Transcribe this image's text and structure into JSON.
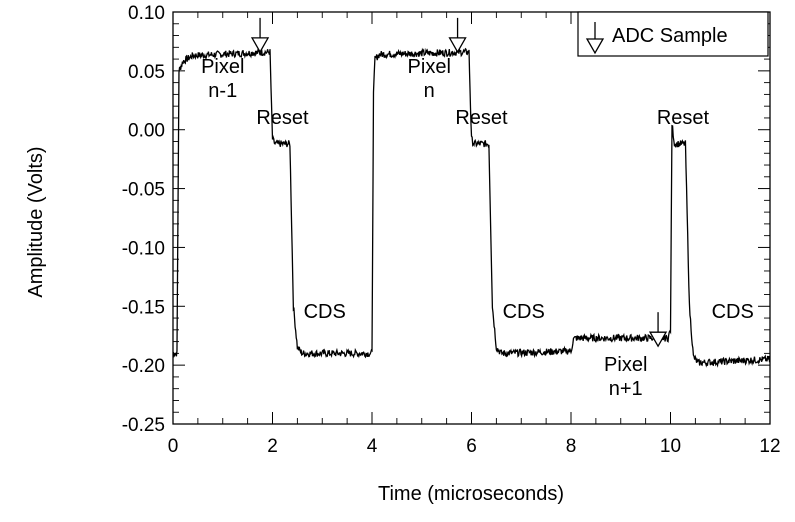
{
  "chart_data": {
    "type": "line",
    "title": "",
    "xlabel": "Time (microseconds)",
    "ylabel": "Amplitude (Volts)",
    "xlim": [
      0,
      12
    ],
    "ylim": [
      -0.25,
      0.1
    ],
    "x_ticks": [
      0,
      2,
      4,
      6,
      8,
      10,
      12
    ],
    "x_tick_labels": [
      "0",
      "2",
      "4",
      "6",
      "8",
      "10",
      "12"
    ],
    "y_ticks": [
      0.1,
      0.05,
      0.0,
      -0.05,
      -0.1,
      -0.15,
      -0.2,
      -0.25
    ],
    "y_tick_labels": [
      "0.10",
      "0.05",
      "0.00",
      "-0.05",
      "-0.10",
      "-0.15",
      "-0.20",
      "-0.25"
    ],
    "grid": false,
    "legend": {
      "position": "top-right",
      "label": "ADC Sample",
      "marker": "down-arrow-icon"
    },
    "series": [
      {
        "color": "#000000",
        "x": [
          0.0,
          0.08,
          0.12,
          0.2,
          0.4,
          1.95,
          1.98,
          2.0,
          2.05,
          2.35,
          2.42,
          2.5,
          2.6,
          4.0,
          4.03,
          4.06,
          4.15,
          5.95,
          5.98,
          6.0,
          6.05,
          6.35,
          6.42,
          6.5,
          6.6,
          8.0,
          8.05,
          8.1,
          9.95,
          10.0,
          10.03,
          10.08,
          10.3,
          10.38,
          10.46,
          10.55,
          12.0
        ],
        "y": [
          -0.19,
          -0.19,
          0.05,
          0.058,
          0.063,
          0.066,
          0.02,
          -0.008,
          -0.012,
          -0.012,
          -0.15,
          -0.185,
          -0.19,
          -0.19,
          0.03,
          0.06,
          0.064,
          0.066,
          0.02,
          -0.008,
          -0.012,
          -0.012,
          -0.15,
          -0.185,
          -0.19,
          -0.188,
          -0.178,
          -0.177,
          -0.177,
          -0.17,
          0.005,
          -0.012,
          -0.012,
          -0.15,
          -0.193,
          -0.198,
          -0.195
        ]
      }
    ],
    "annotations": [
      {
        "text": [
          "Pixel",
          "n-1"
        ],
        "x": 1.0,
        "y": 0.048
      },
      {
        "text": [
          "Reset"
        ],
        "x": 2.2,
        "y": 0.005
      },
      {
        "text": [
          "CDS"
        ],
        "x": 3.05,
        "y": -0.16
      },
      {
        "text": [
          "Pixel",
          "n"
        ],
        "x": 5.15,
        "y": 0.048
      },
      {
        "text": [
          "Reset"
        ],
        "x": 6.2,
        "y": 0.005
      },
      {
        "text": [
          "CDS"
        ],
        "x": 7.05,
        "y": -0.16
      },
      {
        "text": [
          "Pixel",
          "n+1"
        ],
        "x": 9.1,
        "y": -0.205
      },
      {
        "text": [
          "Reset"
        ],
        "x": 10.25,
        "y": 0.005
      },
      {
        "text": [
          "CDS"
        ],
        "x": 11.25,
        "y": -0.16
      }
    ],
    "adc_sample_markers": [
      {
        "x": 1.75,
        "y": 0.095
      },
      {
        "x": 5.72,
        "y": 0.095
      },
      {
        "x": 9.75,
        "y": -0.155
      }
    ]
  }
}
